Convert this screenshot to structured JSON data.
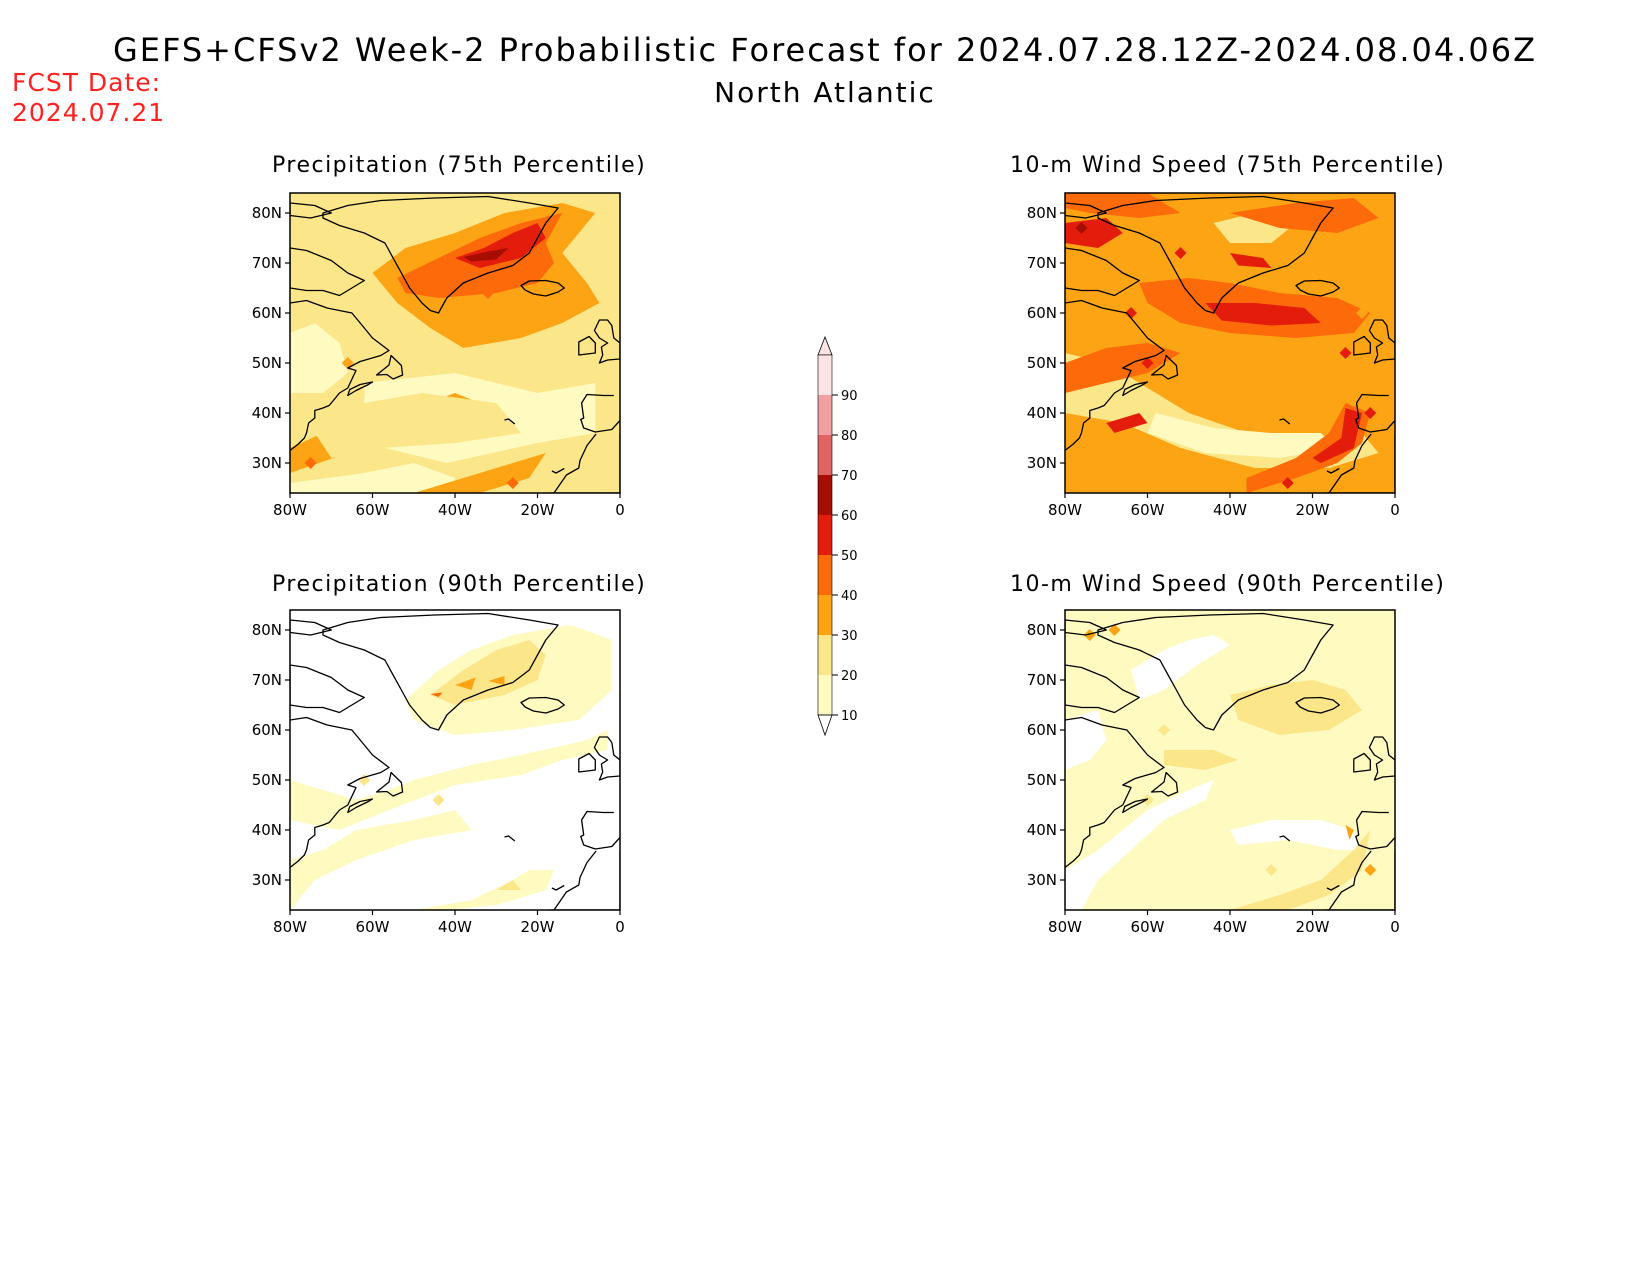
{
  "header": {
    "title": "GEFS+CFSv2 Week-2 Probabilistic Forecast for 2024.07.28.12Z-2024.08.04.06Z",
    "region": "North Atlantic",
    "fcst_label": "FCST Date:",
    "fcst_date": "2024.07.21"
  },
  "colors": {
    "c10": "#fffac0",
    "c20": "#fce68a",
    "c30": "#fda414",
    "c40": "#fc6a0a",
    "c50": "#e41c0c",
    "c60": "#a60e04",
    "c70": "#e06464",
    "c80": "#f0a0a0",
    "c90": "#fde4e4",
    "ocean": "#ffffff",
    "coast": "#000000"
  },
  "axes": {
    "lat_labels": [
      "80N",
      "70N",
      "60N",
      "50N",
      "40N",
      "30N"
    ],
    "lon_labels": [
      "80W",
      "60W",
      "40W",
      "20W",
      "0"
    ]
  },
  "colorbar": {
    "levels": [
      "10",
      "20",
      "30",
      "40",
      "50",
      "60",
      "70",
      "80",
      "90"
    ]
  },
  "panels": [
    {
      "id": "precip75",
      "title": "Precipitation (75th Percentile)",
      "background_level": "c20",
      "intensity": "high"
    },
    {
      "id": "wind75",
      "title": "10-m Wind Speed (75th Percentile)",
      "background_level": "c30",
      "intensity": "high"
    },
    {
      "id": "precip90",
      "title": "Precipitation (90th Percentile)",
      "background_level": "ocean",
      "intensity": "low"
    },
    {
      "id": "wind90",
      "title": "10-m Wind Speed (90th Percentile)",
      "background_level": "c10",
      "intensity": "low"
    }
  ]
}
